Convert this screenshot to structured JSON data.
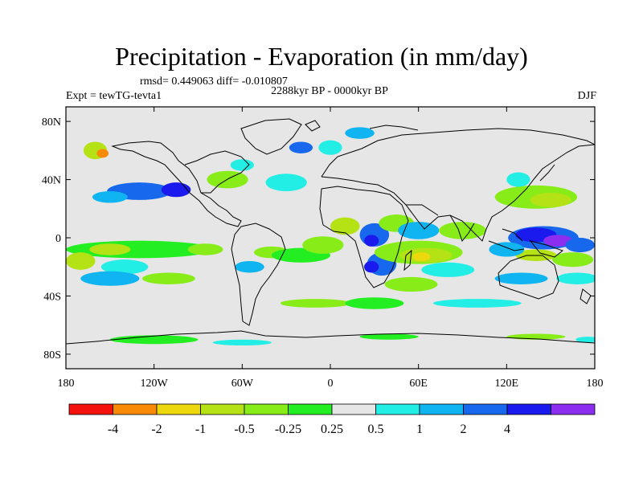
{
  "chart_data": {
    "type": "heatmap",
    "title": "Precipitation - Evaporation (in mm/day)",
    "stats_line": "rmsd= 0.449063 diff= -0.010807",
    "subtitle": "2288kyr BP - 0000kyr BP",
    "experiment": "Expt = tewTG-tevta1",
    "season": "DJF",
    "x_range": [
      -180,
      180
    ],
    "y_range": [
      -90,
      90
    ],
    "x_ticks": [
      {
        "value": -180,
        "label": "180"
      },
      {
        "value": -120,
        "label": "120W"
      },
      {
        "value": -60,
        "label": "60W"
      },
      {
        "value": 0,
        "label": "0"
      },
      {
        "value": 60,
        "label": "60E"
      },
      {
        "value": 120,
        "label": "120E"
      },
      {
        "value": 180,
        "label": "180"
      }
    ],
    "y_ticks": [
      {
        "value": 80,
        "label": "80N"
      },
      {
        "value": 40,
        "label": "40N"
      },
      {
        "value": 0,
        "label": "0"
      },
      {
        "value": -40,
        "label": "40S"
      },
      {
        "value": -80,
        "label": "80S"
      }
    ],
    "colorbar": {
      "colors": [
        "#f4120c",
        "#f98a08",
        "#ecd80c",
        "#b5e215",
        "#88ec18",
        "#22ee22",
        "#e6e6e6",
        "#22eee6",
        "#0fb4f0",
        "#1768ec",
        "#1a1aee",
        "#8b2ef0"
      ],
      "labels": [
        "-4",
        "-2",
        "-1",
        "-0.5",
        "-0.25",
        "0.25",
        "0.5",
        "1",
        "2",
        "4"
      ]
    },
    "field_blobs": [
      {
        "lon": -160,
        "lat": 60,
        "rx": 8,
        "ry": 6,
        "level": 3
      },
      {
        "lon": -155,
        "lat": 58,
        "rx": 4,
        "ry": 3,
        "level": 1
      },
      {
        "lon": -130,
        "lat": 32,
        "rx": 22,
        "ry": 6,
        "level": 9
      },
      {
        "lon": -105,
        "lat": 33,
        "rx": 10,
        "ry": 5,
        "level": 10
      },
      {
        "lon": -150,
        "lat": 28,
        "rx": 12,
        "ry": 4,
        "level": 8
      },
      {
        "lon": -70,
        "lat": 40,
        "rx": 14,
        "ry": 6,
        "level": 4
      },
      {
        "lon": -30,
        "lat": 38,
        "rx": 14,
        "ry": 6,
        "level": 7
      },
      {
        "lon": -130,
        "lat": -8,
        "rx": 50,
        "ry": 6,
        "level": 5
      },
      {
        "lon": -150,
        "lat": -8,
        "rx": 14,
        "ry": 4,
        "level": 3
      },
      {
        "lon": -85,
        "lat": -8,
        "rx": 12,
        "ry": 4,
        "level": 4
      },
      {
        "lon": -170,
        "lat": -16,
        "rx": 10,
        "ry": 6,
        "level": 3
      },
      {
        "lon": -140,
        "lat": -20,
        "rx": 16,
        "ry": 5,
        "level": 7
      },
      {
        "lon": -150,
        "lat": -28,
        "rx": 20,
        "ry": 5,
        "level": 8
      },
      {
        "lon": -110,
        "lat": -28,
        "rx": 18,
        "ry": 4,
        "level": 4
      },
      {
        "lon": -40,
        "lat": -10,
        "rx": 12,
        "ry": 4,
        "level": 4
      },
      {
        "lon": -55,
        "lat": -20,
        "rx": 10,
        "ry": 4,
        "level": 8
      },
      {
        "lon": -20,
        "lat": -12,
        "rx": 20,
        "ry": 5,
        "level": 5
      },
      {
        "lon": -5,
        "lat": -5,
        "rx": 14,
        "ry": 6,
        "level": 4
      },
      {
        "lon": 10,
        "lat": 8,
        "rx": 10,
        "ry": 6,
        "level": 3
      },
      {
        "lon": 30,
        "lat": 2,
        "rx": 10,
        "ry": 8,
        "level": 9
      },
      {
        "lon": 28,
        "lat": -2,
        "rx": 5,
        "ry": 4,
        "level": 10
      },
      {
        "lon": 45,
        "lat": 10,
        "rx": 12,
        "ry": 6,
        "level": 4
      },
      {
        "lon": 35,
        "lat": -18,
        "rx": 10,
        "ry": 8,
        "level": 9
      },
      {
        "lon": 28,
        "lat": -20,
        "rx": 5,
        "ry": 4,
        "level": 10
      },
      {
        "lon": 60,
        "lat": -10,
        "rx": 30,
        "ry": 8,
        "level": 4
      },
      {
        "lon": 65,
        "lat": -12,
        "rx": 18,
        "ry": 5,
        "level": 3
      },
      {
        "lon": 62,
        "lat": -13,
        "rx": 6,
        "ry": 3,
        "level": 2
      },
      {
        "lon": 60,
        "lat": 5,
        "rx": 14,
        "ry": 6,
        "level": 8
      },
      {
        "lon": 90,
        "lat": 5,
        "rx": 16,
        "ry": 6,
        "level": 4
      },
      {
        "lon": 80,
        "lat": -22,
        "rx": 18,
        "ry": 5,
        "level": 7
      },
      {
        "lon": 55,
        "lat": -32,
        "rx": 18,
        "ry": 5,
        "level": 4
      },
      {
        "lon": 140,
        "lat": 28,
        "rx": 28,
        "ry": 8,
        "level": 4
      },
      {
        "lon": 150,
        "lat": 26,
        "rx": 14,
        "ry": 5,
        "level": 3
      },
      {
        "lon": 128,
        "lat": 40,
        "rx": 8,
        "ry": 5,
        "level": 7
      },
      {
        "lon": 145,
        "lat": 0,
        "rx": 24,
        "ry": 8,
        "level": 9
      },
      {
        "lon": 140,
        "lat": 2,
        "rx": 14,
        "ry": 5,
        "level": 10
      },
      {
        "lon": 155,
        "lat": -2,
        "rx": 10,
        "ry": 4,
        "level": 11
      },
      {
        "lon": 170,
        "lat": -5,
        "rx": 10,
        "ry": 5,
        "level": 9
      },
      {
        "lon": 140,
        "lat": -12,
        "rx": 14,
        "ry": 4,
        "level": 3
      },
      {
        "lon": 165,
        "lat": -15,
        "rx": 14,
        "ry": 5,
        "level": 4
      },
      {
        "lon": 120,
        "lat": -8,
        "rx": 12,
        "ry": 5,
        "level": 8
      },
      {
        "lon": 130,
        "lat": -28,
        "rx": 18,
        "ry": 4,
        "level": 8
      },
      {
        "lon": 168,
        "lat": -28,
        "rx": 14,
        "ry": 4,
        "level": 7
      },
      {
        "lon": 20,
        "lat": 72,
        "rx": 10,
        "ry": 4,
        "level": 8
      },
      {
        "lon": 0,
        "lat": 62,
        "rx": 8,
        "ry": 5,
        "level": 7
      },
      {
        "lon": -20,
        "lat": 62,
        "rx": 8,
        "ry": 4,
        "level": 9
      },
      {
        "lon": -60,
        "lat": 50,
        "rx": 8,
        "ry": 4,
        "level": 7
      },
      {
        "lon": -10,
        "lat": -45,
        "rx": 24,
        "ry": 3,
        "level": 4
      },
      {
        "lon": 100,
        "lat": -45,
        "rx": 30,
        "ry": 3,
        "level": 7
      },
      {
        "lon": 30,
        "lat": -45,
        "rx": 20,
        "ry": 4,
        "level": 5
      },
      {
        "lon": -120,
        "lat": -70,
        "rx": 30,
        "ry": 3,
        "level": 5
      },
      {
        "lon": -60,
        "lat": -72,
        "rx": 20,
        "ry": 2,
        "level": 7
      },
      {
        "lon": 40,
        "lat": -68,
        "rx": 20,
        "ry": 2,
        "level": 5
      },
      {
        "lon": 140,
        "lat": -68,
        "rx": 20,
        "ry": 2,
        "level": 4
      },
      {
        "lon": 175,
        "lat": -70,
        "rx": 8,
        "ry": 2,
        "level": 7
      }
    ]
  }
}
